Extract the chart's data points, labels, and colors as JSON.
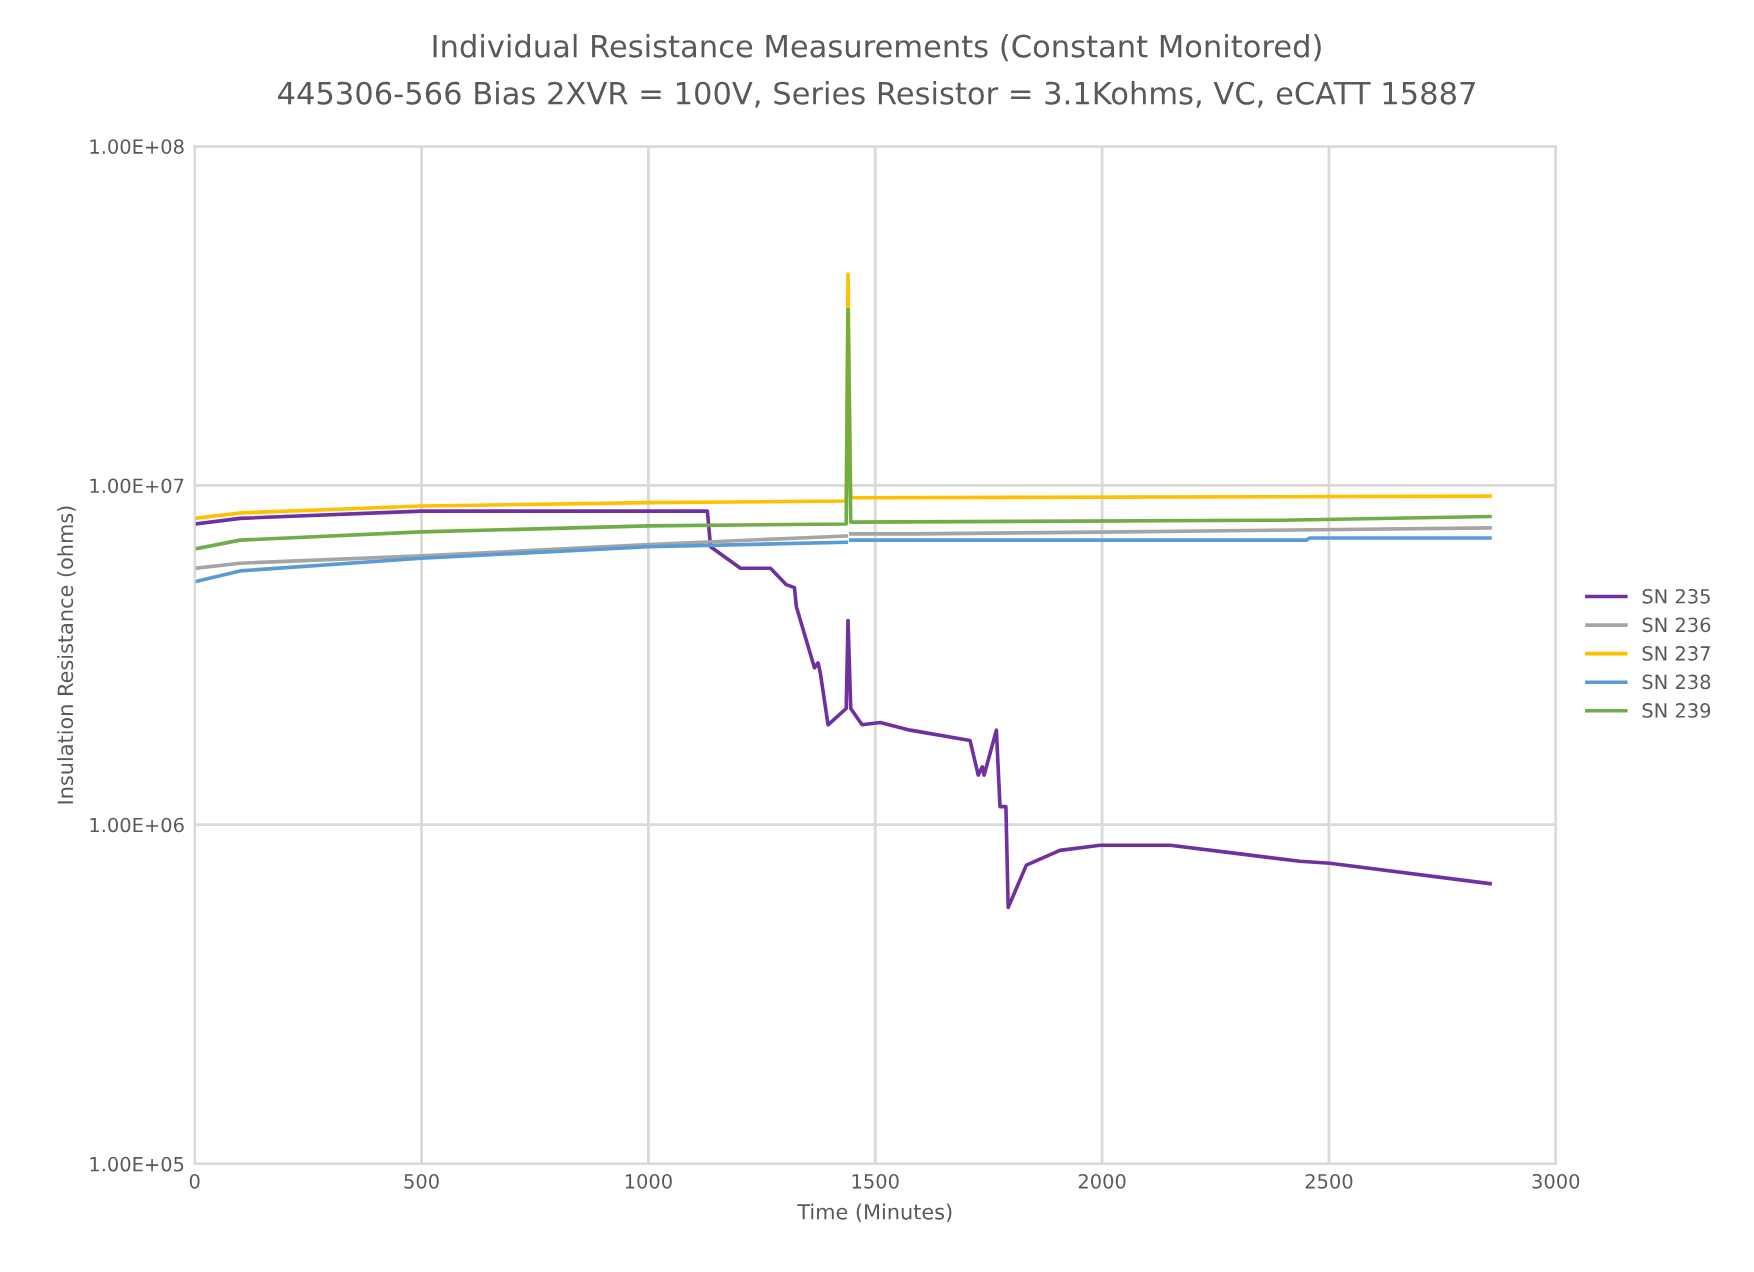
{
  "chart_data": {
    "type": "line",
    "title": "Individual Resistance Measurements (Constant Monitored)",
    "subtitle": "445306-566 Bias 2XVR = 100V, Series Resistor = 3.1Kohms, VC, eCATT 15887",
    "xlabel": "Time (Minutes)",
    "ylabel": "Insulation Resistance (ohms)",
    "log": "y",
    "grid": true,
    "legend": "right",
    "marker": "none",
    "line_style": "solid",
    "xlim": [
      0,
      3000
    ],
    "xticks": [
      0,
      500,
      1000,
      1500,
      2000,
      2500,
      3000
    ],
    "ylim": [
      100000,
      100000000
    ],
    "yticks": [
      {
        "value": 100000,
        "label": "1.00E+05"
      },
      {
        "value": 1000000,
        "label": "1.00E+06"
      },
      {
        "value": 10000000,
        "label": "1.00E+07"
      },
      {
        "value": 100000000,
        "label": "1.00E+08"
      }
    ],
    "series": [
      {
        "name": "SN 235",
        "color": "#7030a0",
        "x": [
          0,
          100,
          500,
          1000,
          1130,
          1137,
          1203,
          1269,
          1304,
          1322,
          1326,
          1366,
          1374,
          1379,
          1396,
          1436,
          1440,
          1446,
          1471,
          1511,
          1577,
          1709,
          1727,
          1736,
          1740,
          1767,
          1775,
          1788,
          1793,
          1833,
          1907,
          1996,
          2150,
          2304,
          2436,
          2502,
          2855
        ],
        "values": [
          7700000,
          8000000,
          8400000,
          8400000,
          8400000,
          6600000,
          5700000,
          5700000,
          5100000,
          5000000,
          4400000,
          2900000,
          3000000,
          2800000,
          1970000,
          2200000,
          4000000,
          2200000,
          1970000,
          2000000,
          1900000,
          1770000,
          1400000,
          1480000,
          1400000,
          1900000,
          1130000,
          1130000,
          570000,
          760000,
          840000,
          870000,
          870000,
          820000,
          780000,
          770000,
          670000
        ]
      },
      {
        "name": "SN 236",
        "color": "#a5a5a5",
        "x": [
          0,
          100,
          500,
          1000,
          1436,
          1440,
          1446,
          1586,
          2050,
          2855
        ],
        "values": [
          5700000,
          5900000,
          6200000,
          6700000,
          7100000,
          null,
          7200000,
          7200000,
          7300000,
          7500000
        ]
      },
      {
        "name": "SN 237",
        "color": "#ffc000",
        "x": [
          0,
          100,
          500,
          1000,
          1436,
          1440,
          1446,
          2855
        ],
        "values": [
          8000000,
          8300000,
          8700000,
          8900000,
          9000000,
          42000000,
          9200000,
          9300000
        ]
      },
      {
        "name": "SN 238",
        "color": "#5b9bd5",
        "x": [
          0,
          100,
          500,
          1000,
          1436,
          1440,
          1446,
          2450,
          2458,
          2855
        ],
        "values": [
          5200000,
          5600000,
          6100000,
          6600000,
          6800000,
          null,
          6900000,
          6900000,
          7000000,
          7000000
        ]
      },
      {
        "name": "SN 239",
        "color": "#70ad47",
        "x": [
          0,
          100,
          500,
          1000,
          1436,
          1440,
          1446,
          2392,
          2855
        ],
        "values": [
          6500000,
          6900000,
          7300000,
          7600000,
          7700000,
          33000000,
          7800000,
          7900000,
          8100000
        ]
      }
    ]
  }
}
